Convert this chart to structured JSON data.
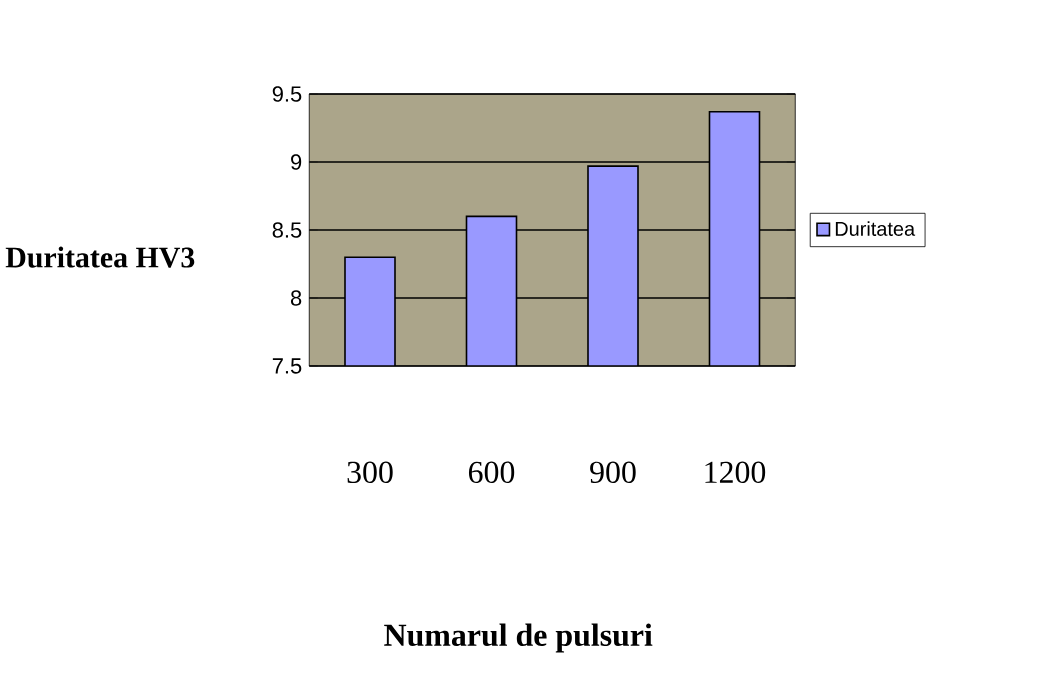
{
  "chart_data": {
    "type": "bar",
    "xlabel": "Numarul de pulsuri",
    "ylabel": "Duritatea HV3",
    "categories": [
      "300",
      "600",
      "900",
      "1200"
    ],
    "series": [
      {
        "name": "Duritatea",
        "color": "#9999ff",
        "values": [
          8.3,
          8.6,
          8.97,
          9.37
        ]
      }
    ],
    "ylim": [
      7.5,
      9.5
    ],
    "yticks": [
      7.5,
      8,
      8.5,
      9,
      9.5
    ],
    "grid": "y",
    "legend": "right"
  }
}
